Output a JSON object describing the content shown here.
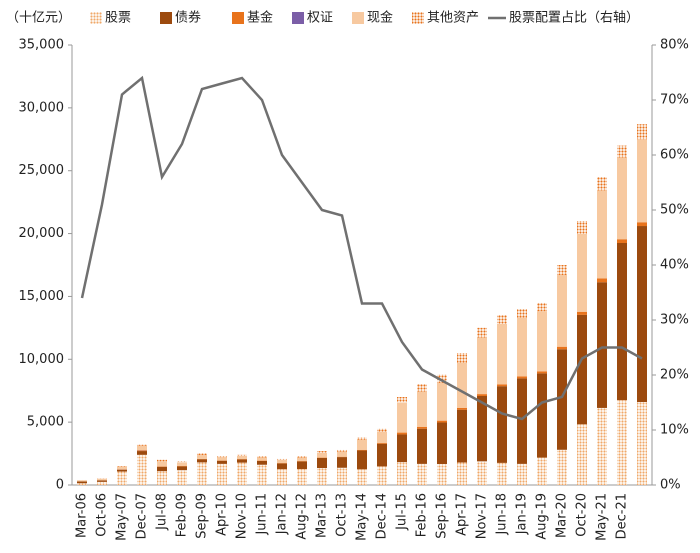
{
  "chart_data": {
    "type": "bar",
    "stacked": true,
    "y_label": "（十亿元）",
    "categories": [
      "Mar-06",
      "Oct-06",
      "May-07",
      "Dec-07",
      "Jul-08",
      "Feb-09",
      "Sep-09",
      "Apr-10",
      "Nov-10",
      "Jun-11",
      "Jan-12",
      "Aug-12",
      "Mar-13",
      "Oct-13",
      "May-14",
      "Dec-14",
      "Jul-15",
      "Feb-16",
      "Sep-16",
      "Apr-17",
      "Nov-17",
      "Jun-18",
      "Jan-19",
      "Aug-19",
      "Mar-20",
      "Oct-20",
      "May-21",
      "Dec-21",
      null
    ],
    "series": [
      {
        "name": "股票",
        "color": "#f0a868",
        "pattern": "dots",
        "values": [
          140,
          250,
          1070,
          2400,
          1100,
          1180,
          1800,
          1680,
          1780,
          1610,
          1260,
          1270,
          1350,
          1370,
          1250,
          1480,
          1820,
          1680,
          1670,
          1790,
          1880,
          1760,
          1680,
          2180,
          2800,
          4830,
          6130,
          6750,
          6600
        ]
      },
      {
        "name": "债券",
        "color": "#9c4a0e",
        "values": [
          140,
          120,
          150,
          300,
          350,
          300,
          250,
          250,
          250,
          300,
          450,
          600,
          800,
          850,
          1500,
          1800,
          2200,
          2800,
          3300,
          4200,
          5200,
          6100,
          6800,
          6700,
          8000,
          8700,
          10000,
          12500,
          14000
        ]
      },
      {
        "name": "基金",
        "color": "#e8731c",
        "values": [
          5,
          5,
          20,
          50,
          40,
          30,
          30,
          30,
          30,
          30,
          30,
          30,
          30,
          30,
          50,
          60,
          150,
          150,
          150,
          150,
          150,
          150,
          150,
          150,
          200,
          250,
          300,
          300,
          300
        ]
      },
      {
        "name": "权证",
        "color": "#7b5ea7",
        "values": [
          0,
          0,
          10,
          20,
          0,
          0,
          0,
          0,
          0,
          0,
          0,
          0,
          0,
          0,
          0,
          0,
          0,
          0,
          0,
          0,
          0,
          0,
          0,
          0,
          0,
          0,
          0,
          0,
          0
        ]
      },
      {
        "name": "现金",
        "color": "#f7c9a0",
        "values": [
          100,
          100,
          200,
          350,
          400,
          300,
          300,
          250,
          250,
          250,
          250,
          280,
          380,
          400,
          800,
          900,
          2400,
          2800,
          3000,
          3600,
          4500,
          4800,
          4700,
          4800,
          5700,
          6200,
          7000,
          6500,
          6600
        ]
      },
      {
        "name": "其他资产",
        "color": "#e8731c",
        "pattern": "dots",
        "values": [
          15,
          25,
          50,
          80,
          110,
          90,
          120,
          90,
          90,
          110,
          110,
          120,
          140,
          150,
          200,
          260,
          430,
          570,
          680,
          760,
          770,
          690,
          670,
          670,
          800,
          1020,
          1070,
          950,
          1200
        ]
      },
      {
        "name": "股票配置占比（右轴）",
        "color": "#707070",
        "type": "line",
        "axis": "y2",
        "values": [
          34,
          51,
          71,
          74,
          56,
          62,
          72,
          73,
          74,
          70,
          60,
          55,
          50,
          49,
          33,
          33,
          26,
          21,
          19,
          17,
          15,
          13,
          12,
          15,
          16,
          23,
          25,
          25,
          23
        ]
      }
    ],
    "ylim": [
      0,
      35000
    ],
    "yticks": [
      0,
      {
        "value": 5000,
        "label": "5,000"
      },
      {
        "value": 10000,
        "label": "10,000"
      },
      {
        "value": 15000,
        "label": "15,000"
      },
      {
        "value": 20000,
        "label": "20,000"
      },
      {
        "value": 25000,
        "label": "25,000"
      },
      {
        "value": 30000,
        "label": "30,000"
      },
      {
        "value": 35000,
        "label": "35,000"
      }
    ],
    "y2lim": [
      0,
      80
    ],
    "y2ticks": [
      {
        "value": 0,
        "label": "0%"
      },
      {
        "value": 10,
        "label": "10%"
      },
      {
        "value": 20,
        "label": "20%"
      },
      {
        "value": 30,
        "label": "30%"
      },
      {
        "value": 40,
        "label": "40%"
      },
      {
        "value": 50,
        "label": "50%"
      },
      {
        "value": 60,
        "label": "60%"
      },
      {
        "value": 70,
        "label": "70%"
      },
      {
        "value": 80,
        "label": "80%"
      }
    ],
    "grid": false,
    "legend": "top"
  }
}
